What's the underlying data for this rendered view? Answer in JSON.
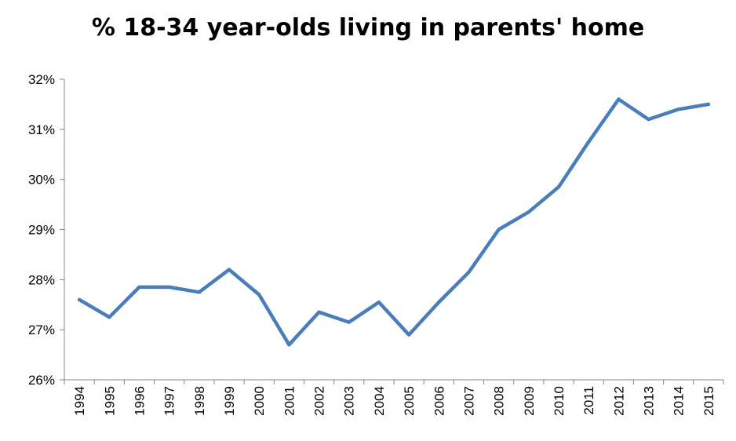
{
  "chart_data": {
    "type": "line",
    "title": "% 18-34 year-olds living in parents' home",
    "xlabel": "",
    "ylabel": "",
    "ylim": [
      26,
      32
    ],
    "y_ticks": [
      "26%",
      "27%",
      "28%",
      "29%",
      "30%",
      "31%",
      "32%"
    ],
    "y_tick_values": [
      26,
      27,
      28,
      29,
      30,
      31,
      32
    ],
    "categories": [
      "1994",
      "1995",
      "1996",
      "1997",
      "1998",
      "1999",
      "2000",
      "2001",
      "2002",
      "2003",
      "2004",
      "2005",
      "2006",
      "2007",
      "2008",
      "2009",
      "2010",
      "2011",
      "2012",
      "2013",
      "2014",
      "2015"
    ],
    "series": [
      {
        "values": [
          27.6,
          27.25,
          27.85,
          27.85,
          27.75,
          28.2,
          27.7,
          26.7,
          27.35,
          27.15,
          27.55,
          26.9,
          27.55,
          28.15,
          29.0,
          29.35,
          29.85,
          30.75,
          31.6,
          31.2,
          31.4,
          31.5
        ],
        "color": "#4a7ebb"
      }
    ],
    "grid": false,
    "legend": "none"
  }
}
